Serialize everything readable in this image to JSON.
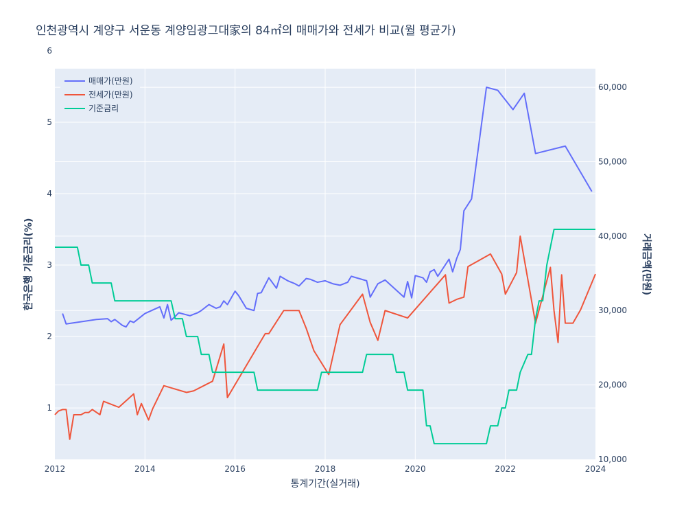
{
  "chart_data": {
    "type": "line",
    "title": "인천광역시 계양구 서운동 계양임광그대家의 84㎡의 매매가와 전세가 비교(월 평균가)",
    "xlabel": "통계기간(실거래)",
    "ylabel_left": "한국은행 기준금리(%)",
    "ylabel_right": "거래금액(만원)",
    "xlim": [
      2012.0,
      2024.0
    ],
    "ylim_left": [
      0.28,
      5.75
    ],
    "ylim_right": [
      10000,
      62500
    ],
    "x_ticks": [
      2012,
      2014,
      2016,
      2018,
      2020,
      2022,
      2024
    ],
    "x_tick_labels": [
      "2012",
      "2014",
      "2016",
      "2018",
      "2020",
      "2022",
      "2024"
    ],
    "y_left_ticks": [
      1,
      2,
      3,
      4,
      5,
      6
    ],
    "y_left_tick_labels": [
      "1",
      "2",
      "3",
      "4",
      "5",
      "6"
    ],
    "y_right_ticks": [
      10000,
      20000,
      30000,
      40000,
      50000,
      60000
    ],
    "y_right_tick_labels": [
      "10,000",
      "20,000",
      "30,000",
      "40,000",
      "50,000",
      "60,000"
    ],
    "legend_position": "top-left",
    "series": [
      {
        "name": "매매가(만원)",
        "color": "#636efa",
        "axis": "right",
        "x": [
          2012.17,
          2012.25,
          2012.92,
          2013.17,
          2013.25,
          2013.33,
          2013.5,
          2013.58,
          2013.67,
          2013.75,
          2014.0,
          2014.33,
          2014.42,
          2014.5,
          2014.58,
          2014.67,
          2014.75,
          2015.0,
          2015.08,
          2015.17,
          2015.25,
          2015.42,
          2015.58,
          2015.67,
          2015.75,
          2015.83,
          2016.0,
          2016.08,
          2016.25,
          2016.42,
          2016.5,
          2016.58,
          2016.75,
          2016.92,
          2017.0,
          2017.17,
          2017.25,
          2017.33,
          2017.42,
          2017.58,
          2017.67,
          2017.75,
          2017.83,
          2018.0,
          2018.17,
          2018.33,
          2018.5,
          2018.58,
          2018.92,
          2019.0,
          2019.17,
          2019.33,
          2019.75,
          2019.83,
          2019.92,
          2020.0,
          2020.17,
          2020.25,
          2020.33,
          2020.42,
          2020.5,
          2020.75,
          2020.83,
          2020.92,
          2021.0,
          2021.08,
          2021.25,
          2021.58,
          2021.83,
          2022.17,
          2022.42,
          2022.67,
          2023.33,
          2023.92
        ],
        "values": [
          29600,
          28200,
          28800,
          28900,
          28500,
          28800,
          28000,
          27800,
          28600,
          28400,
          29600,
          30500,
          29000,
          30800,
          28700,
          29200,
          29700,
          29300,
          29500,
          29700,
          30000,
          30800,
          30300,
          30500,
          31300,
          30800,
          32600,
          32000,
          30300,
          30000,
          32300,
          32400,
          34400,
          33000,
          34600,
          34000,
          33800,
          33600,
          33300,
          34300,
          34200,
          34000,
          33800,
          34000,
          33600,
          33400,
          33800,
          34600,
          34000,
          31800,
          33600,
          34100,
          31800,
          33900,
          31700,
          34700,
          34400,
          33800,
          35200,
          35500,
          34600,
          36900,
          35200,
          37000,
          38200,
          43400,
          45000,
          60000,
          59600,
          57000,
          59200,
          51100,
          52100,
          46000
        ]
      },
      {
        "name": "전세가(만원)",
        "color": "#ef553b",
        "axis": "right",
        "x": [
          2012.0,
          2012.08,
          2012.17,
          2012.25,
          2012.33,
          2012.42,
          2012.58,
          2012.67,
          2012.75,
          2012.83,
          2013.0,
          2013.08,
          2013.42,
          2013.75,
          2013.83,
          2013.92,
          2014.08,
          2014.17,
          2014.42,
          2014.92,
          2015.08,
          2015.5,
          2015.75,
          2015.83,
          2016.67,
          2016.75,
          2017.08,
          2017.17,
          2017.42,
          2017.58,
          2017.75,
          2018.08,
          2018.33,
          2018.83,
          2019.0,
          2019.17,
          2019.33,
          2019.83,
          2020.67,
          2020.75,
          2020.92,
          2021.08,
          2021.17,
          2021.67,
          2021.92,
          2022.0,
          2022.25,
          2022.33,
          2022.67,
          2023.0,
          2023.08,
          2023.17,
          2023.25,
          2023.33,
          2023.5,
          2023.67,
          2024.0
        ],
        "values": [
          16000,
          16500,
          16700,
          16700,
          12700,
          16000,
          16000,
          16300,
          16300,
          16700,
          16000,
          17800,
          17000,
          18800,
          16000,
          17500,
          15300,
          16800,
          19900,
          19000,
          19200,
          20500,
          25500,
          18300,
          26900,
          26900,
          30000,
          30000,
          30000,
          27600,
          24600,
          21400,
          28100,
          32200,
          28400,
          26000,
          30000,
          29000,
          34800,
          31000,
          31500,
          31800,
          35900,
          37600,
          34900,
          32200,
          35100,
          40000,
          28300,
          35800,
          30000,
          25700,
          34800,
          28300,
          28300,
          30100,
          34900
        ]
      },
      {
        "name": "기준금리",
        "color": "#00cc96",
        "axis": "left",
        "x": [
          2012.0,
          2012.5,
          2012.58,
          2012.75,
          2012.83,
          2013.25,
          2013.33,
          2014.58,
          2014.67,
          2014.83,
          2014.92,
          2015.17,
          2015.25,
          2015.42,
          2015.5,
          2016.42,
          2016.5,
          2017.83,
          2017.92,
          2018.83,
          2018.92,
          2019.5,
          2019.58,
          2019.75,
          2019.83,
          2020.17,
          2020.25,
          2020.33,
          2020.42,
          2021.58,
          2021.67,
          2021.83,
          2021.92,
          2022.0,
          2022.08,
          2022.25,
          2022.33,
          2022.5,
          2022.58,
          2022.67,
          2022.75,
          2022.83,
          2022.92,
          2023.0,
          2023.08,
          2024.0
        ],
        "values": [
          3.25,
          3.25,
          3.0,
          3.0,
          2.75,
          2.75,
          2.5,
          2.5,
          2.25,
          2.25,
          2.0,
          2.0,
          1.75,
          1.75,
          1.5,
          1.5,
          1.25,
          1.25,
          1.5,
          1.5,
          1.75,
          1.75,
          1.5,
          1.5,
          1.25,
          1.25,
          0.75,
          0.75,
          0.5,
          0.5,
          0.75,
          0.75,
          1.0,
          1.0,
          1.25,
          1.25,
          1.5,
          1.75,
          1.75,
          2.25,
          2.5,
          2.5,
          3.0,
          3.25,
          3.5,
          3.5
        ]
      }
    ]
  }
}
